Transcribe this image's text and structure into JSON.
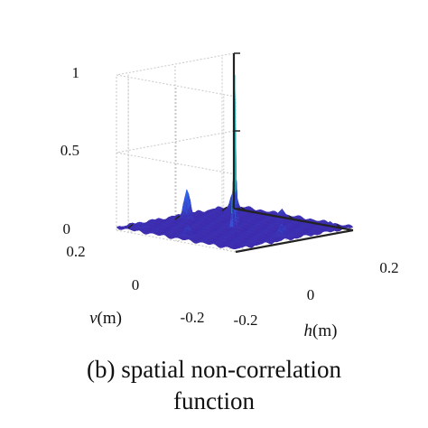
{
  "chart_data": {
    "type": "surface3d",
    "caption_line1": "(b) spatial non-correlation",
    "caption_line2": "function",
    "xlabel_italic": "h",
    "xlabel_unit": "(m)",
    "ylabel_italic": "v",
    "ylabel_unit": "(m)",
    "x_ticks": [
      "-0.2",
      "0",
      "0.2"
    ],
    "y_ticks": [
      "-0.2",
      "0",
      "0.2"
    ],
    "z_ticks": [
      "0",
      "0.5",
      "1"
    ],
    "xlim": [
      -0.25,
      0.25
    ],
    "ylim": [
      -0.25,
      0.25
    ],
    "zlim": [
      0,
      1
    ],
    "floor_level": 0.02,
    "colormap": [
      "#3e26a8",
      "#2f63e8",
      "#1e9cd7",
      "#35c2a0",
      "#a5cc50",
      "#f5c738",
      "#f9fb0e"
    ],
    "peaks": [
      {
        "h": 0.0,
        "v": 0.0,
        "z": 1.0
      },
      {
        "h": 0.0,
        "v": 0.2,
        "z": 0.1
      },
      {
        "h": 0.0,
        "v": -0.2,
        "z": 0.07
      },
      {
        "h": -0.2,
        "v": 0.0,
        "z": 0.2
      },
      {
        "h": 0.2,
        "v": 0.0,
        "z": 0.12
      },
      {
        "h": -0.2,
        "v": 0.2,
        "z": 0.06
      },
      {
        "h": 0.2,
        "v": -0.2,
        "z": 0.05
      },
      {
        "h": -0.2,
        "v": -0.2,
        "z": 0.14
      }
    ],
    "grid": true
  }
}
